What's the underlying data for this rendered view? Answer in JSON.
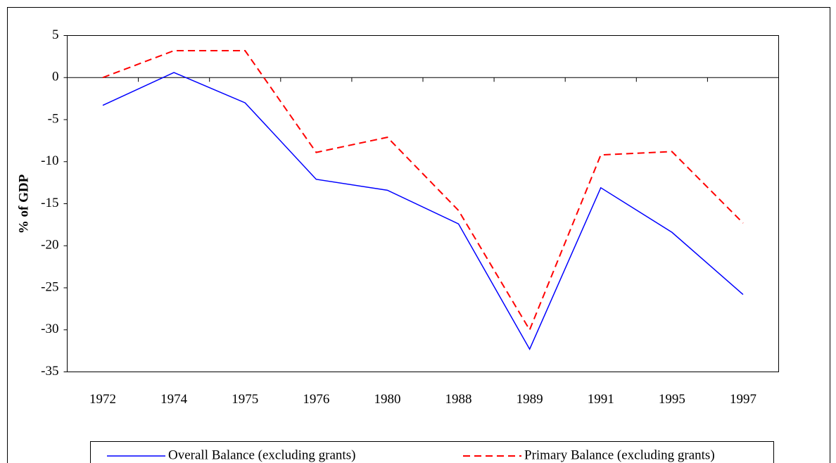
{
  "chart_data": {
    "type": "line",
    "y_label": "% of GDP",
    "categories": [
      "1972",
      "1974",
      "1975",
      "1976",
      "1980",
      "1988",
      "1989",
      "1991",
      "1995",
      "1997"
    ],
    "series": [
      {
        "name": "Overall Balance (excluding grants)",
        "color": "#0000ff",
        "line_style": "solid",
        "values": [
          -3.3,
          0.6,
          -3.0,
          -12.1,
          -13.4,
          -17.4,
          -32.3,
          -13.1,
          -18.4,
          -25.8
        ]
      },
      {
        "name": "Primary Balance (excluding grants)",
        "color": "#ff0000",
        "line_style": "dashed",
        "values": [
          0,
          3.2,
          3.2,
          -8.9,
          -7.1,
          -15.8,
          -30.0,
          -9.2,
          -8.8,
          -17.3
        ]
      }
    ],
    "ylim": [
      -35,
      5
    ],
    "yticks": [
      -35,
      -30,
      -25,
      -20,
      -15,
      -10,
      -5,
      0,
      5
    ],
    "grid": false,
    "legend": "bottom"
  }
}
